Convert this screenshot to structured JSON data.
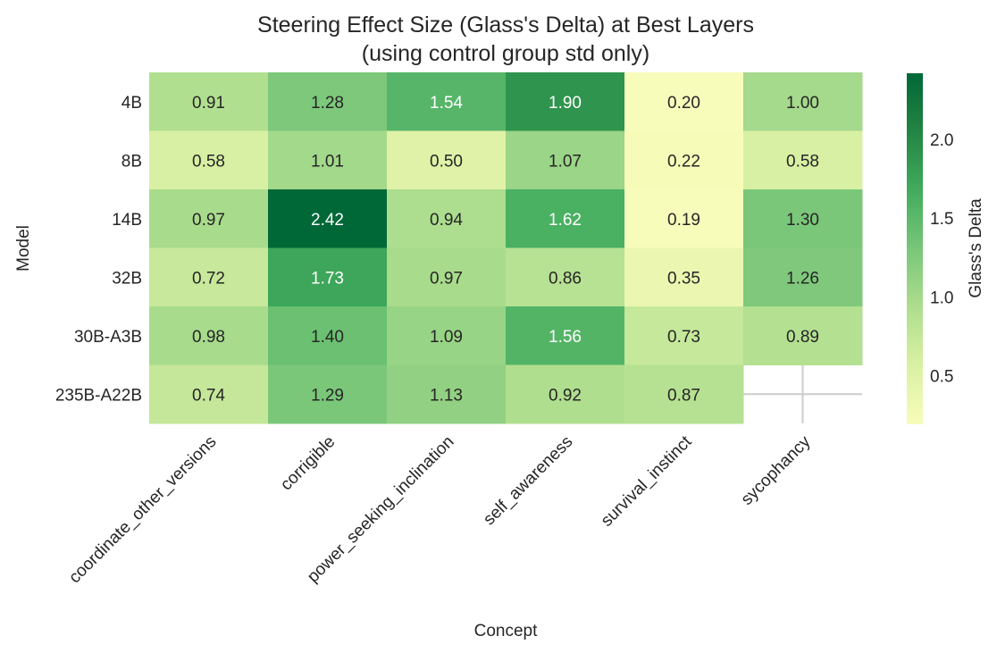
{
  "chart_data": {
    "type": "heatmap",
    "title": "Steering Effect Size (Glass's Delta) at Best Layers",
    "subtitle": "(using control group std only)",
    "xlabel": "Concept",
    "ylabel": "Model",
    "x_categories": [
      "coordinate_other_versions",
      "corrigible",
      "power_seeking_inclination",
      "self_awareness",
      "survival_instinct",
      "sycophancy"
    ],
    "y_categories": [
      "4B",
      "8B",
      "14B",
      "32B",
      "30B-A3B",
      "235B-A22B"
    ],
    "values": [
      [
        0.91,
        1.28,
        1.54,
        1.9,
        0.2,
        1.0
      ],
      [
        0.58,
        1.01,
        0.5,
        1.07,
        0.22,
        0.58
      ],
      [
        0.97,
        2.42,
        0.94,
        1.62,
        0.19,
        1.3
      ],
      [
        0.72,
        1.73,
        0.97,
        0.86,
        0.35,
        1.26
      ],
      [
        0.98,
        1.4,
        1.09,
        1.56,
        0.73,
        0.89
      ],
      [
        0.74,
        1.29,
        1.13,
        0.92,
        0.87,
        null
      ]
    ],
    "value_format": "0.00",
    "colormap": "YlGn",
    "color_range": [
      0.19,
      2.42
    ],
    "colorbar": {
      "label": "Glass's Delta",
      "ticks": [
        0.5,
        1.0,
        1.5,
        2.0
      ],
      "tick_labels": [
        "0.5",
        "1.0",
        "1.5",
        "2.0"
      ]
    },
    "missing_cell_style": "blank with grid",
    "grid": true
  }
}
